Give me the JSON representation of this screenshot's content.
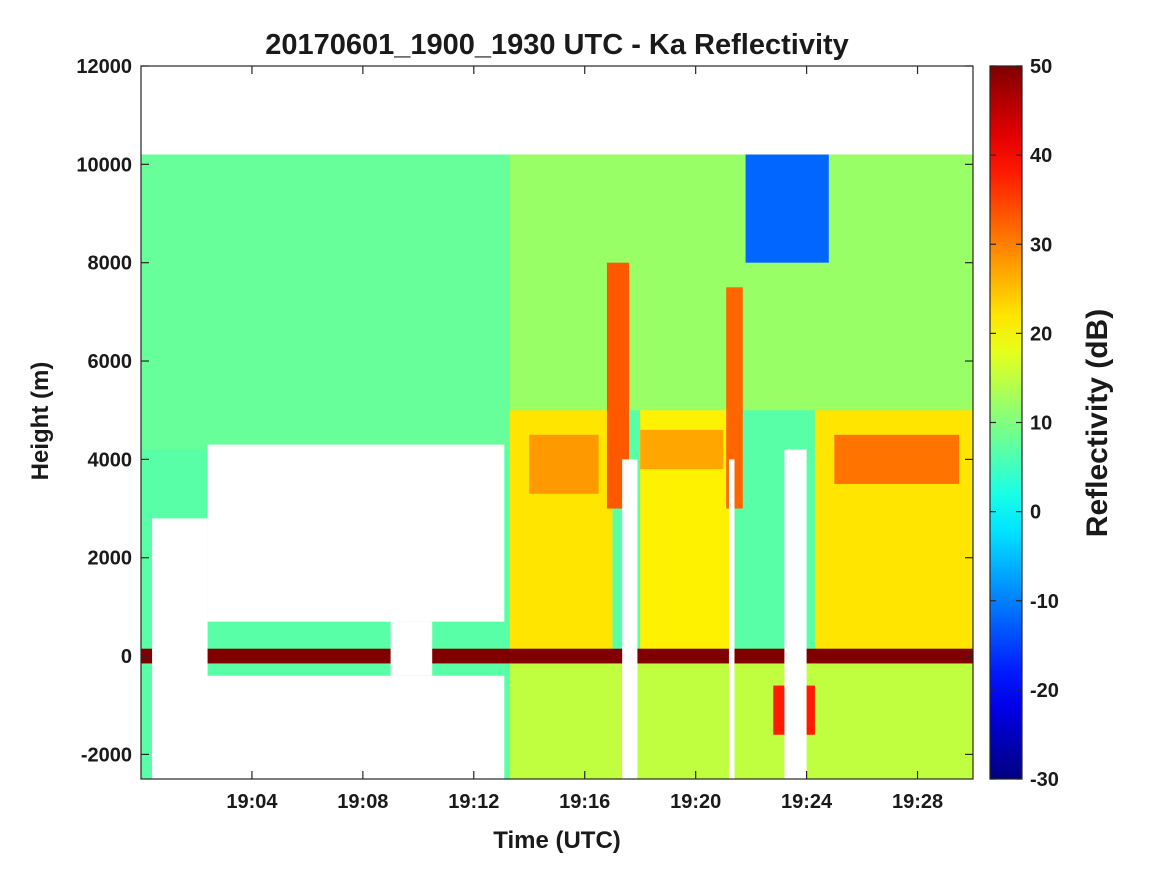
{
  "chart_data": {
    "type": "heatmap",
    "title": "20170601_1900_1930 UTC - Ka Reflectivity",
    "xlabel": "Time (UTC)",
    "ylabel": "Height (m)",
    "colorbar_label": "Reflectivity (dB)",
    "x_unit": "minutes past 19:00 UTC",
    "xlim": [
      0,
      30
    ],
    "ylim": [
      -2500,
      12000
    ],
    "x_ticks": [
      {
        "value": 4,
        "label": "19:04"
      },
      {
        "value": 8,
        "label": "19:08"
      },
      {
        "value": 12,
        "label": "19:12"
      },
      {
        "value": 16,
        "label": "19:16"
      },
      {
        "value": 20,
        "label": "19:20"
      },
      {
        "value": 24,
        "label": "19:24"
      },
      {
        "value": 28,
        "label": "19:28"
      }
    ],
    "y_ticks": [
      {
        "value": 12000,
        "label": "12000"
      },
      {
        "value": 10000,
        "label": "10000"
      },
      {
        "value": 8000,
        "label": "8000"
      },
      {
        "value": 6000,
        "label": "6000"
      },
      {
        "value": 4000,
        "label": "4000"
      },
      {
        "value": 2000,
        "label": "2000"
      },
      {
        "value": 0,
        "label": "0"
      },
      {
        "value": -2000,
        "label": "-2000"
      }
    ],
    "colorbar": {
      "colormap": "jet",
      "clim": [
        -30,
        50
      ],
      "ticks": [
        {
          "value": 50,
          "label": "50"
        },
        {
          "value": 40,
          "label": "40"
        },
        {
          "value": 30,
          "label": "30"
        },
        {
          "value": 20,
          "label": "20"
        },
        {
          "value": 10,
          "label": "10"
        },
        {
          "value": 0,
          "label": "0"
        },
        {
          "value": -10,
          "label": "-10"
        },
        {
          "value": -20,
          "label": "-20"
        },
        {
          "value": -30,
          "label": "-30"
        }
      ]
    },
    "data_top_height": 10200,
    "background_reflectivity": 7,
    "regions": [
      {
        "name": "upper-cloud-left",
        "x": [
          0,
          13.3
        ],
        "y": [
          4200,
          10200
        ],
        "dbz": 8
      },
      {
        "name": "upper-cloud-right",
        "x": [
          13.3,
          30
        ],
        "y": [
          5000,
          10200
        ],
        "dbz": 12
      },
      {
        "name": "mid-layer-15-17",
        "x": [
          13.3,
          17
        ],
        "y": [
          0,
          5000
        ],
        "dbz": 22
      },
      {
        "name": "bright-band-15",
        "x": [
          14,
          16.5
        ],
        "y": [
          3300,
          4500
        ],
        "dbz": 28
      },
      {
        "name": "mid-layer-18-21",
        "x": [
          18,
          21.3
        ],
        "y": [
          0,
          5000
        ],
        "dbz": 21
      },
      {
        "name": "bright-band-19",
        "x": [
          18,
          21
        ],
        "y": [
          3800,
          4600
        ],
        "dbz": 27
      },
      {
        "name": "mid-layer-24-30",
        "x": [
          24.3,
          30
        ],
        "y": [
          0,
          5000
        ],
        "dbz": 22
      },
      {
        "name": "bright-band-26",
        "x": [
          25,
          29.5
        ],
        "y": [
          3500,
          4500
        ],
        "dbz": 31
      },
      {
        "name": "convective-core-17",
        "x": [
          16.8,
          17.6
        ],
        "y": [
          3000,
          8000
        ],
        "dbz": 33
      },
      {
        "name": "convective-core-21",
        "x": [
          21.1,
          21.7
        ],
        "y": [
          3000,
          7500
        ],
        "dbz": 32
      },
      {
        "name": "weak-echo-top-23",
        "x": [
          21.8,
          24.8
        ],
        "y": [
          8000,
          10200
        ],
        "dbz": -12
      },
      {
        "name": "below-ground-echo",
        "x": [
          13.3,
          30
        ],
        "y": [
          -2500,
          0
        ],
        "dbz": 15
      },
      {
        "name": "surface-return",
        "x": [
          0,
          30
        ],
        "y": [
          -150,
          150
        ],
        "dbz": 50
      },
      {
        "name": "surface-dip-23",
        "x": [
          22.8,
          24.3
        ],
        "y": [
          -1600,
          -600
        ],
        "dbz": 38
      }
    ],
    "no_data_regions": [
      {
        "x": [
          0,
          30
        ],
        "y": [
          10200,
          12000
        ]
      },
      {
        "x": [
          2.4,
          13.1
        ],
        "y": [
          700,
          4300
        ]
      },
      {
        "x": [
          0.4,
          2.4
        ],
        "y": [
          -2500,
          2800
        ]
      },
      {
        "x": [
          0.4,
          13.1
        ],
        "y": [
          -2500,
          -400
        ]
      },
      {
        "x": [
          9.0,
          10.5
        ],
        "y": [
          -400,
          700
        ]
      },
      {
        "x": [
          17.35,
          17.9
        ],
        "y": [
          -2500,
          4000
        ]
      },
      {
        "x": [
          21.2,
          21.4
        ],
        "y": [
          -2500,
          4000
        ]
      },
      {
        "x": [
          23.2,
          24.0
        ],
        "y": [
          -2500,
          4200
        ]
      }
    ]
  }
}
